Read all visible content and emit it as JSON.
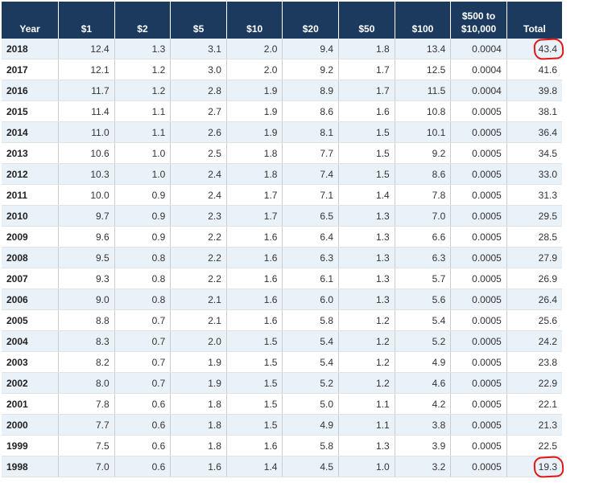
{
  "table": {
    "headers": [
      "Year",
      "$1",
      "$2",
      "$5",
      "$10",
      "$20",
      "$50",
      "$100",
      "$500 to",
      "$10,000",
      "Total"
    ],
    "rows": [
      [
        "2018",
        "12.4",
        "1.3",
        "3.1",
        "2.0",
        "9.4",
        "1.8",
        "13.4",
        "0.0004",
        "43.4"
      ],
      [
        "2017",
        "12.1",
        "1.2",
        "3.0",
        "2.0",
        "9.2",
        "1.7",
        "12.5",
        "0.0004",
        "41.6"
      ],
      [
        "2016",
        "11.7",
        "1.2",
        "2.8",
        "1.9",
        "8.9",
        "1.7",
        "11.5",
        "0.0004",
        "39.8"
      ],
      [
        "2015",
        "11.4",
        "1.1",
        "2.7",
        "1.9",
        "8.6",
        "1.6",
        "10.8",
        "0.0005",
        "38.1"
      ],
      [
        "2014",
        "11.0",
        "1.1",
        "2.6",
        "1.9",
        "8.1",
        "1.5",
        "10.1",
        "0.0005",
        "36.4"
      ],
      [
        "2013",
        "10.6",
        "1.0",
        "2.5",
        "1.8",
        "7.7",
        "1.5",
        "9.2",
        "0.0005",
        "34.5"
      ],
      [
        "2012",
        "10.3",
        "1.0",
        "2.4",
        "1.8",
        "7.4",
        "1.5",
        "8.6",
        "0.0005",
        "33.0"
      ],
      [
        "2011",
        "10.0",
        "0.9",
        "2.4",
        "1.7",
        "7.1",
        "1.4",
        "7.8",
        "0.0005",
        "31.3"
      ],
      [
        "2010",
        "9.7",
        "0.9",
        "2.3",
        "1.7",
        "6.5",
        "1.3",
        "7.0",
        "0.0005",
        "29.5"
      ],
      [
        "2009",
        "9.6",
        "0.9",
        "2.2",
        "1.6",
        "6.4",
        "1.3",
        "6.6",
        "0.0005",
        "28.5"
      ],
      [
        "2008",
        "9.5",
        "0.8",
        "2.2",
        "1.6",
        "6.3",
        "1.3",
        "6.3",
        "0.0005",
        "27.9"
      ],
      [
        "2007",
        "9.3",
        "0.8",
        "2.2",
        "1.6",
        "6.1",
        "1.3",
        "5.7",
        "0.0005",
        "26.9"
      ],
      [
        "2006",
        "9.0",
        "0.8",
        "2.1",
        "1.6",
        "6.0",
        "1.3",
        "5.6",
        "0.0005",
        "26.4"
      ],
      [
        "2005",
        "8.8",
        "0.7",
        "2.1",
        "1.6",
        "5.8",
        "1.2",
        "5.4",
        "0.0005",
        "25.6"
      ],
      [
        "2004",
        "8.3",
        "0.7",
        "2.0",
        "1.5",
        "5.4",
        "1.2",
        "5.2",
        "0.0005",
        "24.2"
      ],
      [
        "2003",
        "8.2",
        "0.7",
        "1.9",
        "1.5",
        "5.4",
        "1.2",
        "4.9",
        "0.0005",
        "23.8"
      ],
      [
        "2002",
        "8.0",
        "0.7",
        "1.9",
        "1.5",
        "5.2",
        "1.2",
        "4.6",
        "0.0005",
        "22.9"
      ],
      [
        "2001",
        "7.8",
        "0.6",
        "1.8",
        "1.5",
        "5.0",
        "1.1",
        "4.2",
        "0.0005",
        "22.1"
      ],
      [
        "2000",
        "7.7",
        "0.6",
        "1.8",
        "1.5",
        "4.9",
        "1.1",
        "3.8",
        "0.0005",
        "21.3"
      ],
      [
        "1999",
        "7.5",
        "0.6",
        "1.8",
        "1.6",
        "5.8",
        "1.3",
        "3.9",
        "0.0005",
        "22.5"
      ],
      [
        "1998",
        "7.0",
        "0.6",
        "1.6",
        "1.4",
        "4.5",
        "1.0",
        "3.2",
        "0.0005",
        "19.3"
      ]
    ],
    "highlighted_cells": [
      "2018-total",
      "1998-total"
    ]
  },
  "colors": {
    "header_bg": "#1c3a5e",
    "row_alt": "#e9f1f9",
    "highlight": "#e01818"
  }
}
